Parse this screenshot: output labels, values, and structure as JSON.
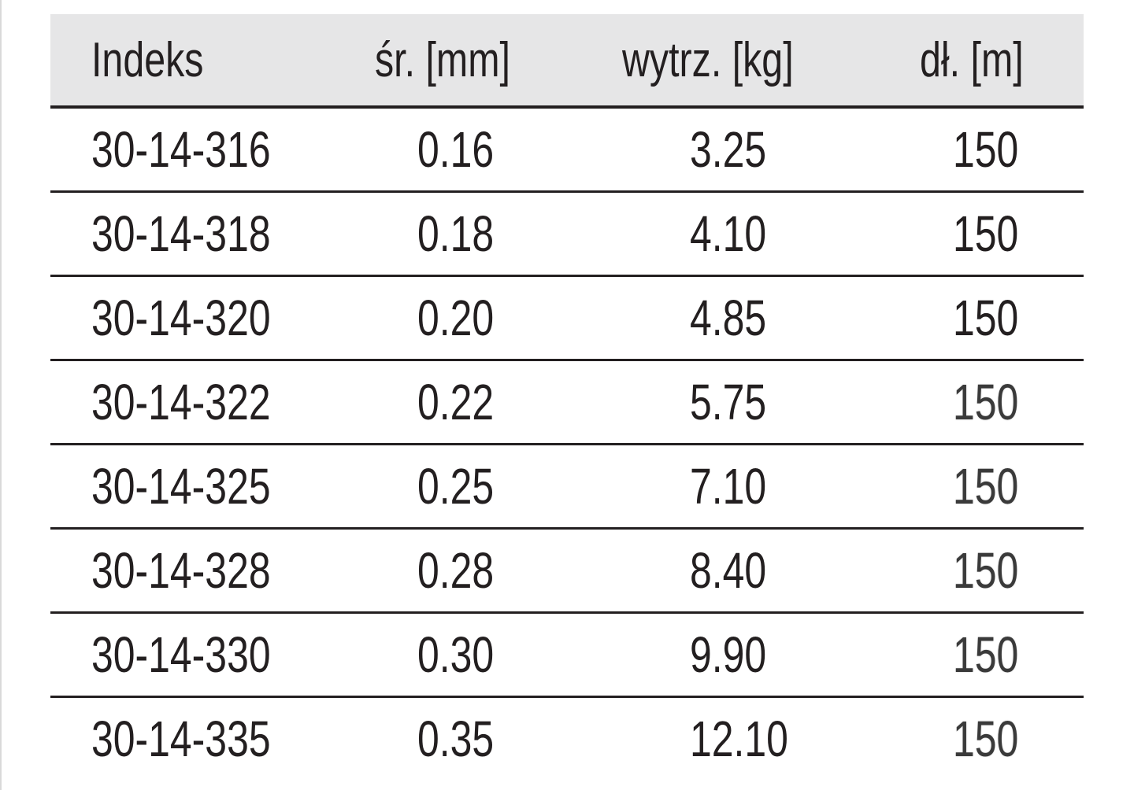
{
  "table": {
    "headers": [
      "Indeks",
      "śr. [mm]",
      "wytrz. [kg]",
      "dł. [m]"
    ],
    "rows": [
      [
        "30-14-316",
        "0.16",
        "3.25",
        "150"
      ],
      [
        "30-14-318",
        "0.18",
        "4.10",
        "150"
      ],
      [
        "30-14-320",
        "0.20",
        "4.85",
        "150"
      ],
      [
        "30-14-322",
        "0.22",
        "5.75",
        "150"
      ],
      [
        "30-14-325",
        "0.25",
        "7.10",
        "150"
      ],
      [
        "30-14-328",
        "0.28",
        "8.40",
        "150"
      ],
      [
        "30-14-330",
        "0.30",
        "9.90",
        "150"
      ],
      [
        "30-14-335",
        "0.35",
        "12.10",
        "150"
      ]
    ]
  }
}
